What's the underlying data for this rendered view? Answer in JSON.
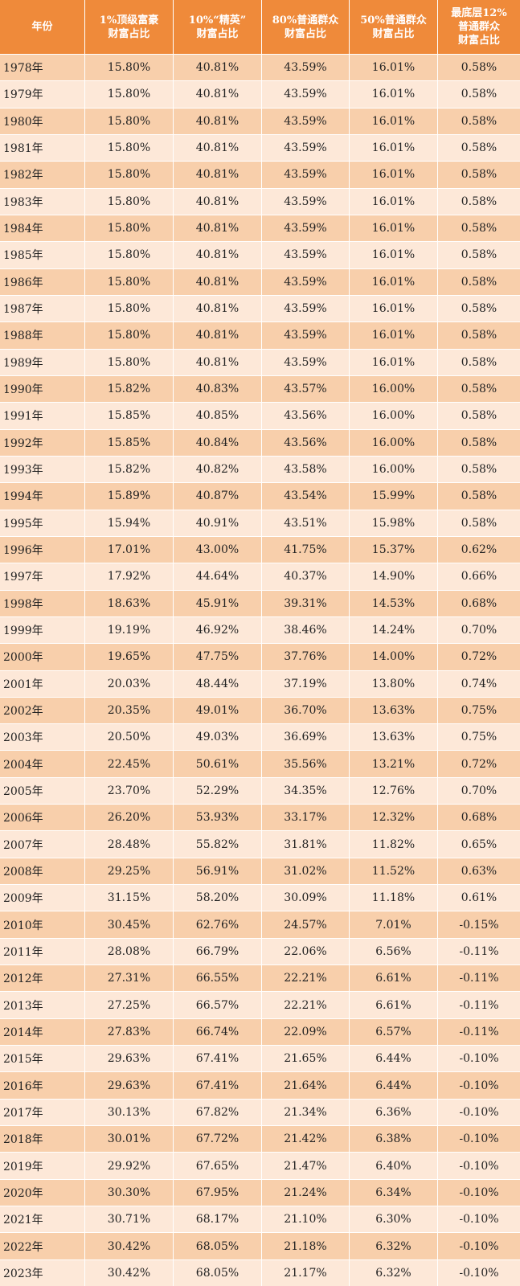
{
  "header": [
    [
      "年份"
    ],
    [
      "1%顶级富豪",
      "财富占比"
    ],
    [
      "10%“精英”",
      "财富占比"
    ],
    [
      "80%普通群众",
      "财富占比"
    ],
    [
      "50%普通群众",
      "财富占比"
    ],
    [
      "最底层12%",
      "普通群众",
      "财富占比"
    ]
  ],
  "rows": [
    [
      "1978年",
      "15.80%",
      "40.81%",
      "43.59%",
      "16.01%",
      "0.58%"
    ],
    [
      "1979年",
      "15.80%",
      "40.81%",
      "43.59%",
      "16.01%",
      "0.58%"
    ],
    [
      "1980年",
      "15.80%",
      "40.81%",
      "43.59%",
      "16.01%",
      "0.58%"
    ],
    [
      "1981年",
      "15.80%",
      "40.81%",
      "43.59%",
      "16.01%",
      "0.58%"
    ],
    [
      "1982年",
      "15.80%",
      "40.81%",
      "43.59%",
      "16.01%",
      "0.58%"
    ],
    [
      "1983年",
      "15.80%",
      "40.81%",
      "43.59%",
      "16.01%",
      "0.58%"
    ],
    [
      "1984年",
      "15.80%",
      "40.81%",
      "43.59%",
      "16.01%",
      "0.58%"
    ],
    [
      "1985年",
      "15.80%",
      "40.81%",
      "43.59%",
      "16.01%",
      "0.58%"
    ],
    [
      "1986年",
      "15.80%",
      "40.81%",
      "43.59%",
      "16.01%",
      "0.58%"
    ],
    [
      "1987年",
      "15.80%",
      "40.81%",
      "43.59%",
      "16.01%",
      "0.58%"
    ],
    [
      "1988年",
      "15.80%",
      "40.81%",
      "43.59%",
      "16.01%",
      "0.58%"
    ],
    [
      "1989年",
      "15.80%",
      "40.81%",
      "43.59%",
      "16.01%",
      "0.58%"
    ],
    [
      "1990年",
      "15.82%",
      "40.83%",
      "43.57%",
      "16.00%",
      "0.58%"
    ],
    [
      "1991年",
      "15.85%",
      "40.85%",
      "43.56%",
      "16.00%",
      "0.58%"
    ],
    [
      "1992年",
      "15.85%",
      "40.84%",
      "43.56%",
      "16.00%",
      "0.58%"
    ],
    [
      "1993年",
      "15.82%",
      "40.82%",
      "43.58%",
      "16.00%",
      "0.58%"
    ],
    [
      "1994年",
      "15.89%",
      "40.87%",
      "43.54%",
      "15.99%",
      "0.58%"
    ],
    [
      "1995年",
      "15.94%",
      "40.91%",
      "43.51%",
      "15.98%",
      "0.58%"
    ],
    [
      "1996年",
      "17.01%",
      "43.00%",
      "41.75%",
      "15.37%",
      "0.62%"
    ],
    [
      "1997年",
      "17.92%",
      "44.64%",
      "40.37%",
      "14.90%",
      "0.66%"
    ],
    [
      "1998年",
      "18.63%",
      "45.91%",
      "39.31%",
      "14.53%",
      "0.68%"
    ],
    [
      "1999年",
      "19.19%",
      "46.92%",
      "38.46%",
      "14.24%",
      "0.70%"
    ],
    [
      "2000年",
      "19.65%",
      "47.75%",
      "37.76%",
      "14.00%",
      "0.72%"
    ],
    [
      "2001年",
      "20.03%",
      "48.44%",
      "37.19%",
      "13.80%",
      "0.74%"
    ],
    [
      "2002年",
      "20.35%",
      "49.01%",
      "36.70%",
      "13.63%",
      "0.75%"
    ],
    [
      "2003年",
      "20.50%",
      "49.03%",
      "36.69%",
      "13.63%",
      "0.75%"
    ],
    [
      "2004年",
      "22.45%",
      "50.61%",
      "35.56%",
      "13.21%",
      "0.72%"
    ],
    [
      "2005年",
      "23.70%",
      "52.29%",
      "34.35%",
      "12.76%",
      "0.70%"
    ],
    [
      "2006年",
      "26.20%",
      "53.93%",
      "33.17%",
      "12.32%",
      "0.68%"
    ],
    [
      "2007年",
      "28.48%",
      "55.82%",
      "31.81%",
      "11.82%",
      "0.65%"
    ],
    [
      "2008年",
      "29.25%",
      "56.91%",
      "31.02%",
      "11.52%",
      "0.63%"
    ],
    [
      "2009年",
      "31.15%",
      "58.20%",
      "30.09%",
      "11.18%",
      "0.61%"
    ],
    [
      "2010年",
      "30.45%",
      "62.76%",
      "24.57%",
      "7.01%",
      "-0.15%"
    ],
    [
      "2011年",
      "28.08%",
      "66.79%",
      "22.06%",
      "6.56%",
      "-0.11%"
    ],
    [
      "2012年",
      "27.31%",
      "66.55%",
      "22.21%",
      "6.61%",
      "-0.11%"
    ],
    [
      "2013年",
      "27.25%",
      "66.57%",
      "22.21%",
      "6.61%",
      "-0.11%"
    ],
    [
      "2014年",
      "27.83%",
      "66.74%",
      "22.09%",
      "6.57%",
      "-0.11%"
    ],
    [
      "2015年",
      "29.63%",
      "67.41%",
      "21.65%",
      "6.44%",
      "-0.10%"
    ],
    [
      "2016年",
      "29.63%",
      "67.41%",
      "21.64%",
      "6.44%",
      "-0.10%"
    ],
    [
      "2017年",
      "30.13%",
      "67.82%",
      "21.34%",
      "6.36%",
      "-0.10%"
    ],
    [
      "2018年",
      "30.01%",
      "67.72%",
      "21.42%",
      "6.38%",
      "-0.10%"
    ],
    [
      "2019年",
      "29.92%",
      "67.65%",
      "21.47%",
      "6.40%",
      "-0.10%"
    ],
    [
      "2020年",
      "30.30%",
      "67.95%",
      "21.24%",
      "6.34%",
      "-0.10%"
    ],
    [
      "2021年",
      "30.71%",
      "68.17%",
      "21.10%",
      "6.30%",
      "-0.10%"
    ],
    [
      "2022年",
      "30.42%",
      "68.05%",
      "21.18%",
      "6.32%",
      "-0.10%"
    ],
    [
      "2023年",
      "30.42%",
      "68.05%",
      "21.17%",
      "6.32%",
      "-0.10%"
    ]
  ]
}
